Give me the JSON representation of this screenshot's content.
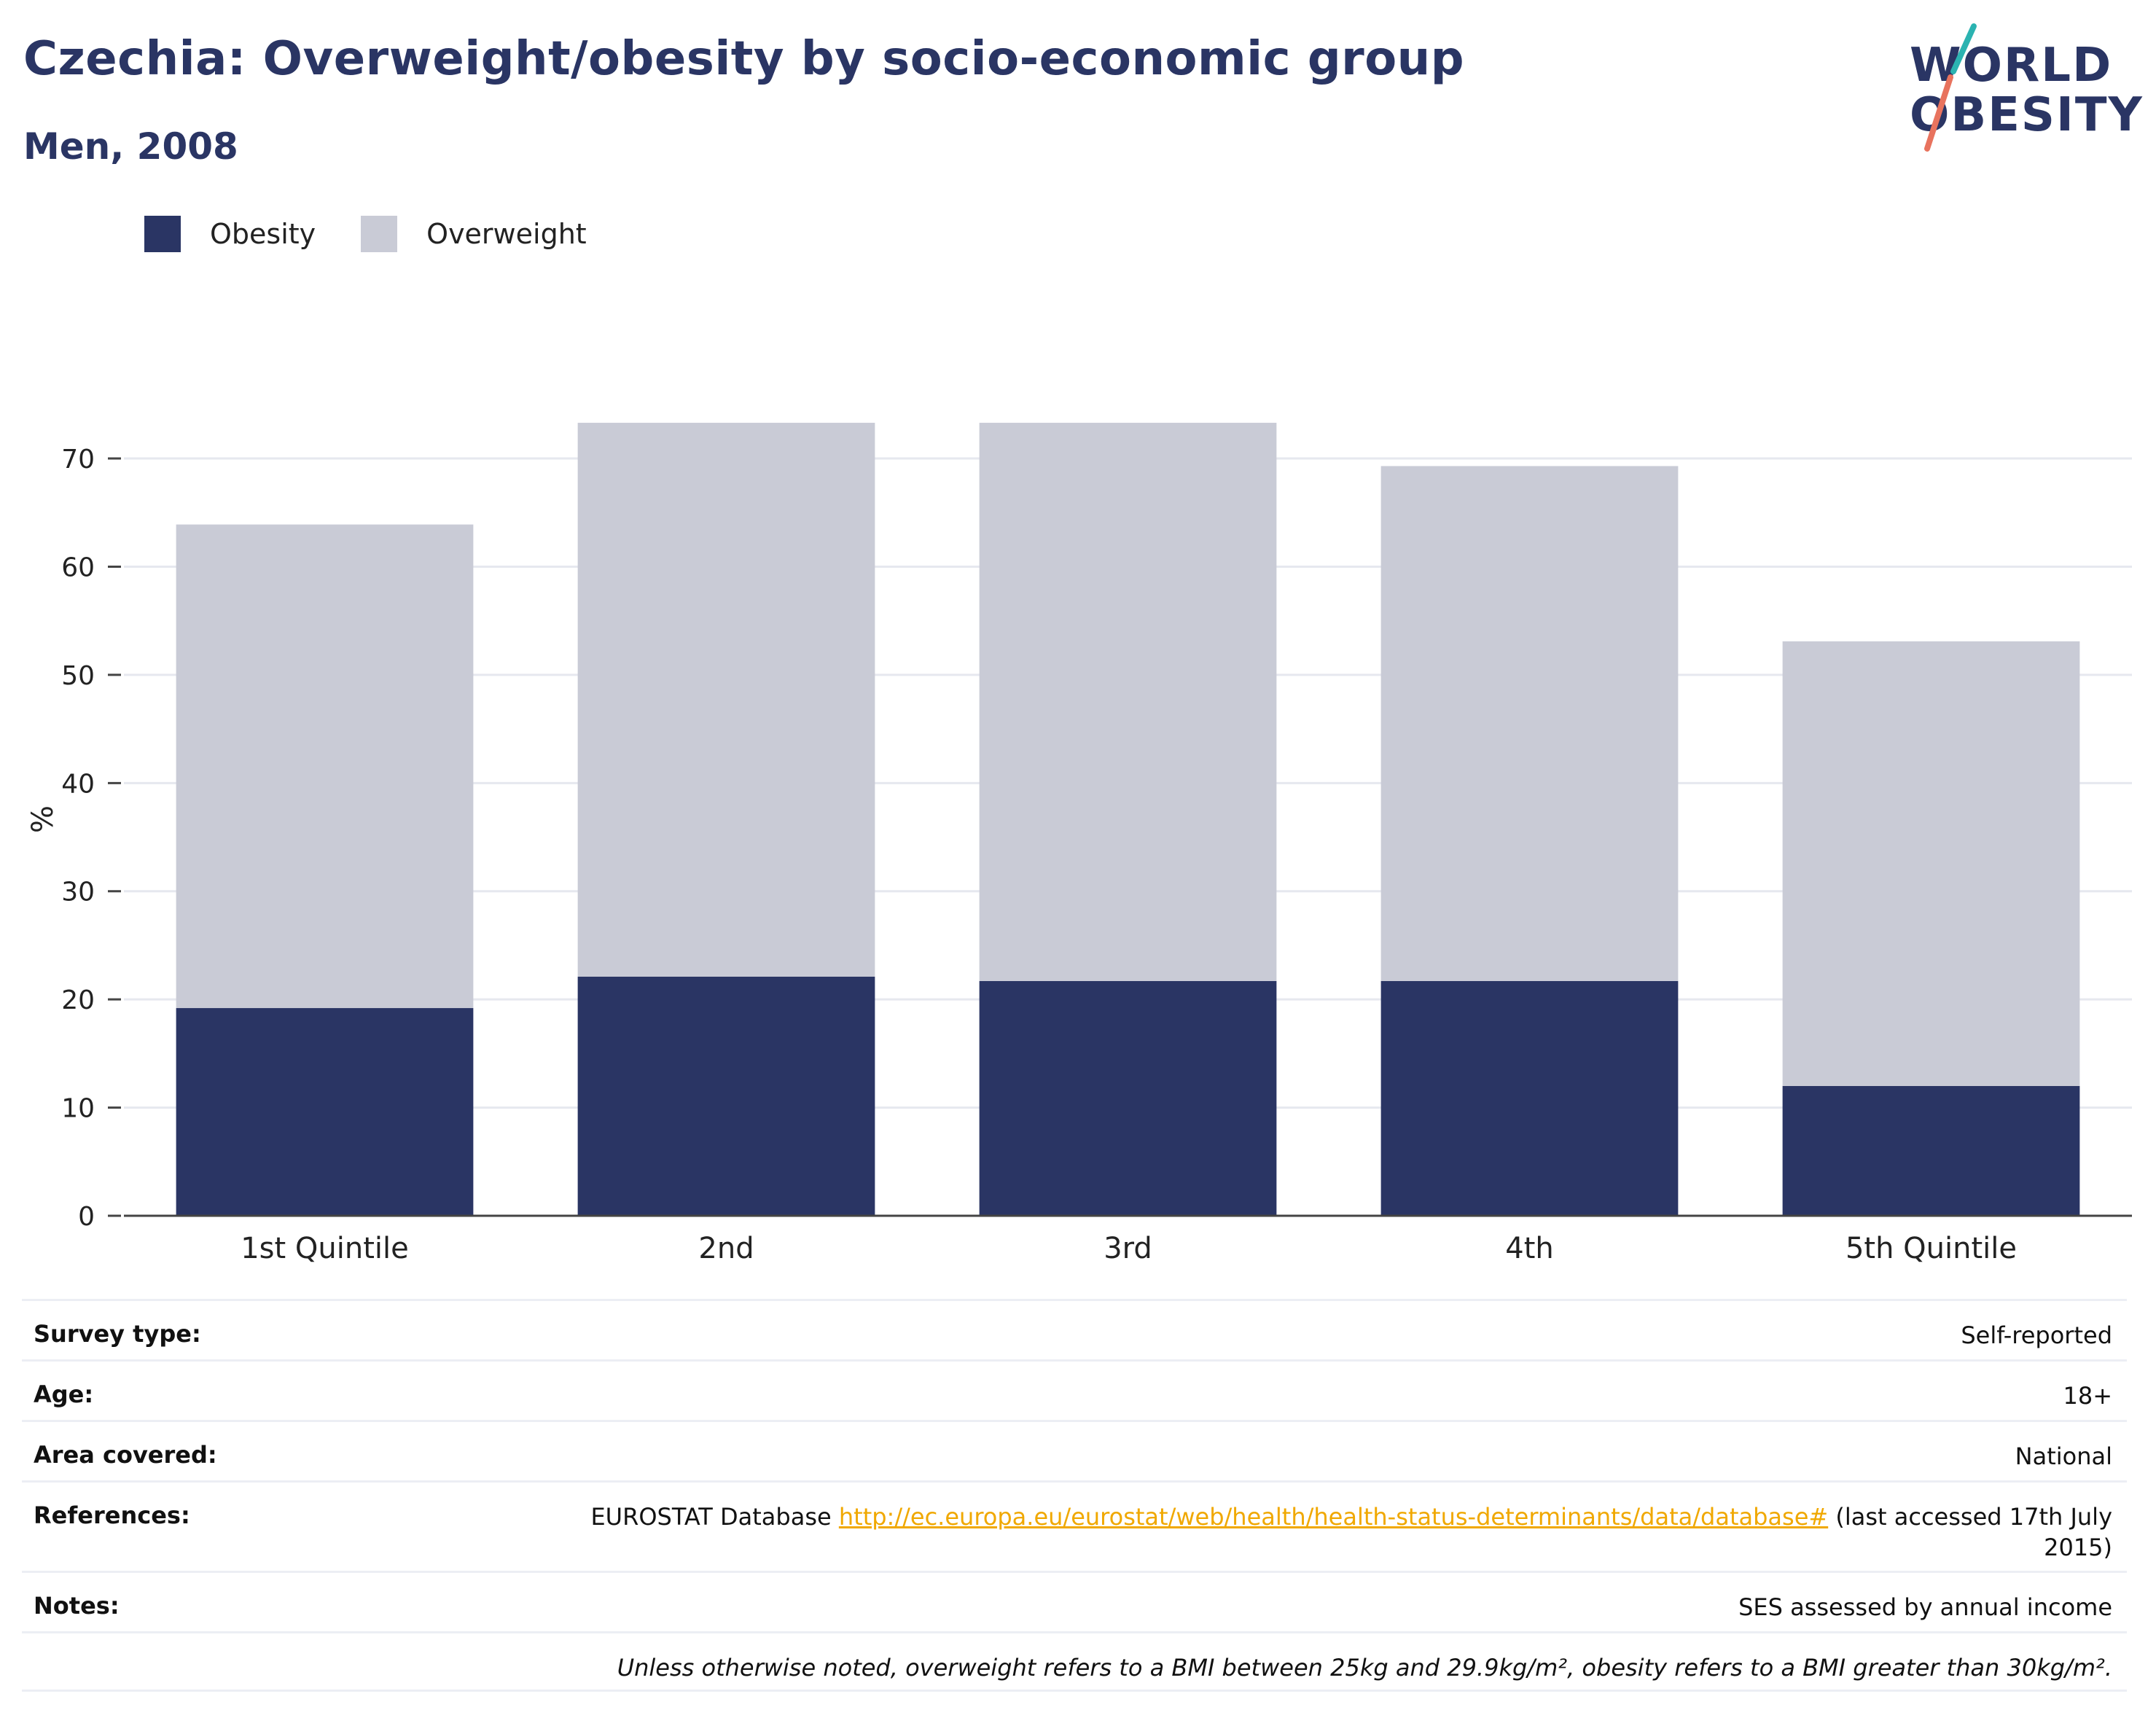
{
  "header": {
    "title": "Czechia: Overweight/obesity by socio-economic group",
    "subtitle": "Men, 2008"
  },
  "logo": {
    "line1": "WORLD",
    "line2": "OBESITY",
    "colors": {
      "text": "#2a3564",
      "slash_top": "#2bb3b1",
      "slash_bottom": "#e8735e"
    }
  },
  "chart_data": {
    "type": "bar",
    "stacked": true,
    "categories": [
      "1st Quintile",
      "2nd",
      "3rd",
      "4th",
      "5th Quintile"
    ],
    "series": [
      {
        "name": "Obesity",
        "color": "#2a3564",
        "values": [
          19.2,
          22.1,
          21.7,
          21.7,
          12.0
        ]
      },
      {
        "name": "Overweight",
        "color": "#c9cbd6",
        "values": [
          44.7,
          51.2,
          51.6,
          47.6,
          41.1
        ]
      }
    ],
    "totals": [
      63.9,
      73.3,
      73.3,
      69.3,
      53.1
    ],
    "ylabel": "%",
    "xlabel": "",
    "ylim": [
      0,
      76
    ],
    "yticks": [
      0,
      10,
      20,
      30,
      40,
      50,
      60,
      70
    ],
    "grid": true,
    "legend_position": "top-left"
  },
  "info": {
    "rows": [
      {
        "label": "Survey type:",
        "value": "Self-reported"
      },
      {
        "label": "Age:",
        "value": "18+"
      },
      {
        "label": "Area covered:",
        "value": "National"
      }
    ],
    "references": {
      "label": "References:",
      "prefix": "EUROSTAT Database ",
      "link": "http://ec.europa.eu/eurostat/web/health/health-status-determinants/data/database#",
      "suffix": " (last accessed 17th July 2015)"
    },
    "notes": {
      "label": "Notes:",
      "value": "SES assessed by annual income"
    },
    "footnote": "Unless otherwise noted, overweight refers to a BMI between 25kg and 29.9kg/m², obesity refers to a BMI greater than 30kg/m²."
  }
}
